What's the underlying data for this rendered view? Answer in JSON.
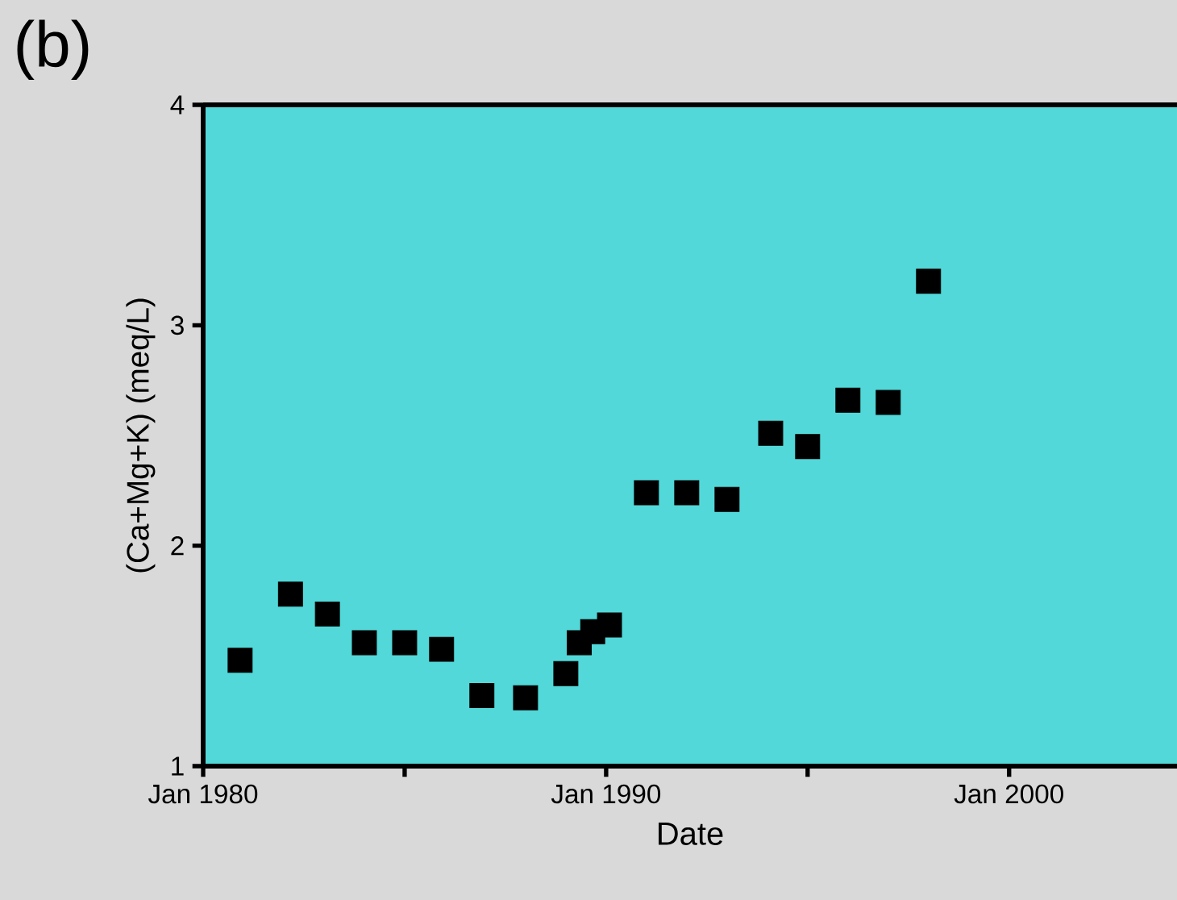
{
  "chart_data": {
    "type": "scatter",
    "title": "(b)",
    "xlabel": "Date",
    "ylabel": "(Ca+Mg+K)  (meq/L)",
    "x": [
      "1980-12",
      "1982-03",
      "1983-02",
      "1984-01",
      "1985-01",
      "1985-12",
      "1986-12",
      "1988-01",
      "1989-01",
      "1989-05",
      "1989-09",
      "1990-02",
      "1991-01",
      "1992-01",
      "1993-01",
      "1994-02",
      "1995-01",
      "1996-01",
      "1997-01",
      "1998-01"
    ],
    "series": [
      {
        "color": "#000000",
        "values": [
          1.48,
          1.78,
          1.69,
          1.56,
          1.56,
          1.53,
          1.32,
          1.31,
          1.42,
          1.56,
          1.61,
          1.64,
          2.24,
          2.24,
          2.21,
          2.51,
          2.45,
          2.66,
          2.65,
          3.2
        ]
      }
    ],
    "xlim": [
      "1980-01",
      "2004-03"
    ],
    "xticks": [
      {
        "value": "1980-01",
        "label": "Jan 1980"
      },
      {
        "value": "1985-01",
        "label": null
      },
      {
        "value": "1990-01",
        "label": "Jan 1990"
      },
      {
        "value": "1995-01",
        "label": null
      },
      {
        "value": "2000-01",
        "label": "Jan 2000"
      }
    ],
    "ylim": [
      1,
      4
    ],
    "yticks": [
      1,
      2,
      3,
      4
    ],
    "marker": "square",
    "grid": false
  }
}
